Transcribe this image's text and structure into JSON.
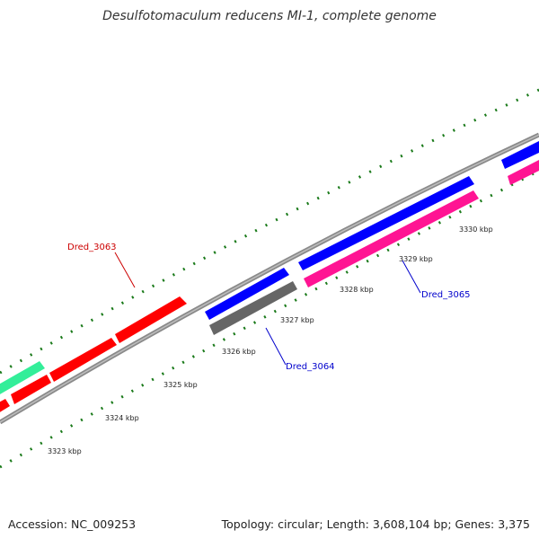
{
  "title": "Desulfotomaculum reducens MI-1, complete genome",
  "footer": {
    "accession": "Accession: NC_009253",
    "genome_info": "Topology: circular; Length: 3,608,104 bp; Genes: 3,375"
  },
  "ticks": [
    "3323 kbp",
    "3324 kbp",
    "3325 kbp",
    "3326 kbp",
    "3327 kbp",
    "3328 kbp",
    "3329 kbp",
    "3330 kbp"
  ],
  "gene_labels": [
    {
      "text": "Dred_3063",
      "color": "#cc0000"
    },
    {
      "text": "Dred_3064",
      "color": "#0000cc"
    },
    {
      "text": "Dred_3065",
      "color": "#0000cc"
    }
  ],
  "colors": {
    "backbone": "#888888",
    "tick_marks": "#1a7a1a",
    "forward_red": "#ff0000",
    "forward_blue": "#0000ff",
    "forward_green": "#33ee99",
    "reverse_gray": "#666666",
    "reverse_pink": "#ff1493"
  }
}
